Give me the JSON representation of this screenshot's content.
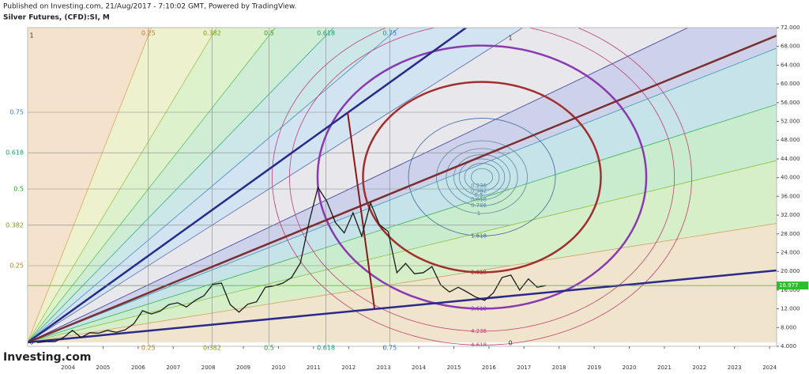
{
  "header": {
    "published": "Published on Investing.com, 21/Aug/2017 - 7:10:02 GMT, Powered by TradingView.",
    "symbol": "Silver Futures, (CFD):SI, M",
    "logo": "Investing.com"
  },
  "chart_data": {
    "type": "line",
    "series": [
      {
        "name": "Silver Futures",
        "color": "#1a1a1a",
        "x": [
          2003.125,
          2003.375,
          2003.625,
          2003.875,
          2004.125,
          2004.375,
          2004.625,
          2004.875,
          2005.125,
          2005.375,
          2005.625,
          2005.875,
          2006.125,
          2006.375,
          2006.625,
          2006.875,
          2007.125,
          2007.375,
          2007.625,
          2007.875,
          2008.125,
          2008.375,
          2008.625,
          2008.875,
          2009.125,
          2009.375,
          2009.625,
          2009.875,
          2010.125,
          2010.375,
          2010.625,
          2010.875,
          2011.125,
          2011.375,
          2011.625,
          2011.875,
          2012.125,
          2012.375,
          2012.625,
          2012.875,
          2013.125,
          2013.375,
          2013.625,
          2013.875,
          2014.125,
          2014.375,
          2014.625,
          2014.875,
          2015.125,
          2015.375,
          2015.625,
          2015.875,
          2016.125,
          2016.375,
          2016.625,
          2016.875,
          2017.125,
          2017.375,
          2017.625
        ],
        "values": [
          4.8,
          5.0,
          5.0,
          5.9,
          7.4,
          5.9,
          6.9,
          6.8,
          7.4,
          7.0,
          7.5,
          8.8,
          11.6,
          10.9,
          11.5,
          12.9,
          13.3,
          12.4,
          13.8,
          14.8,
          17.2,
          17.5,
          12.9,
          11.3,
          13.0,
          13.5,
          16.6,
          16.9,
          17.5,
          18.7,
          21.8,
          30.6,
          37.9,
          35.0,
          30.4,
          28.2,
          32.5,
          27.5,
          34.6,
          30.0,
          28.5,
          19.7,
          21.7,
          19.5,
          19.7,
          21.0,
          17.1,
          15.6,
          16.6,
          15.6,
          14.5,
          13.8,
          15.4,
          18.7,
          19.2,
          16.0,
          18.4,
          16.6,
          16.977
        ]
      }
    ],
    "last_price": {
      "value": 16.977,
      "label": "16.977"
    },
    "xlim": [
      2002.85,
      2024.2
    ],
    "xticks": [
      2004,
      2005,
      2006,
      2007,
      2008,
      2009,
      2010,
      2011,
      2012,
      2013,
      2014,
      2015,
      2016,
      2017,
      2018,
      2019,
      2020,
      2021,
      2022,
      2023,
      2024
    ],
    "ylim": [
      4,
      72
    ],
    "yticks": [
      {
        "value": 4,
        "label": "4.000"
      },
      {
        "value": 8,
        "label": "8.000"
      },
      {
        "value": 12,
        "label": "12.000"
      },
      {
        "value": 16,
        "label": "16.000"
      },
      {
        "value": 20,
        "label": "20.000"
      },
      {
        "value": 24,
        "label": "24.000"
      },
      {
        "value": 28,
        "label": "28.000"
      },
      {
        "value": 32,
        "label": "32.000"
      },
      {
        "value": 36,
        "label": "36.000"
      },
      {
        "value": 40,
        "label": "40.000"
      },
      {
        "value": 44,
        "label": "44.000"
      },
      {
        "value": 48,
        "label": "48.000"
      },
      {
        "value": 52,
        "label": "52.000"
      },
      {
        "value": 56,
        "label": "56.000"
      },
      {
        "value": 60,
        "label": "60.000"
      },
      {
        "value": 64,
        "label": "64.000"
      },
      {
        "value": 68,
        "label": "68.000"
      },
      {
        "value": 72,
        "label": "72.000"
      }
    ],
    "fan_levels": [
      0.25,
      0.382,
      0.5,
      0.618,
      0.75
    ],
    "fan_ends": [
      0,
      1
    ],
    "circle_levels": [
      0.236,
      0.382,
      0.5,
      0.618,
      0.786,
      1,
      1.618,
      2.618,
      3.618,
      4.236,
      4.618
    ]
  }
}
